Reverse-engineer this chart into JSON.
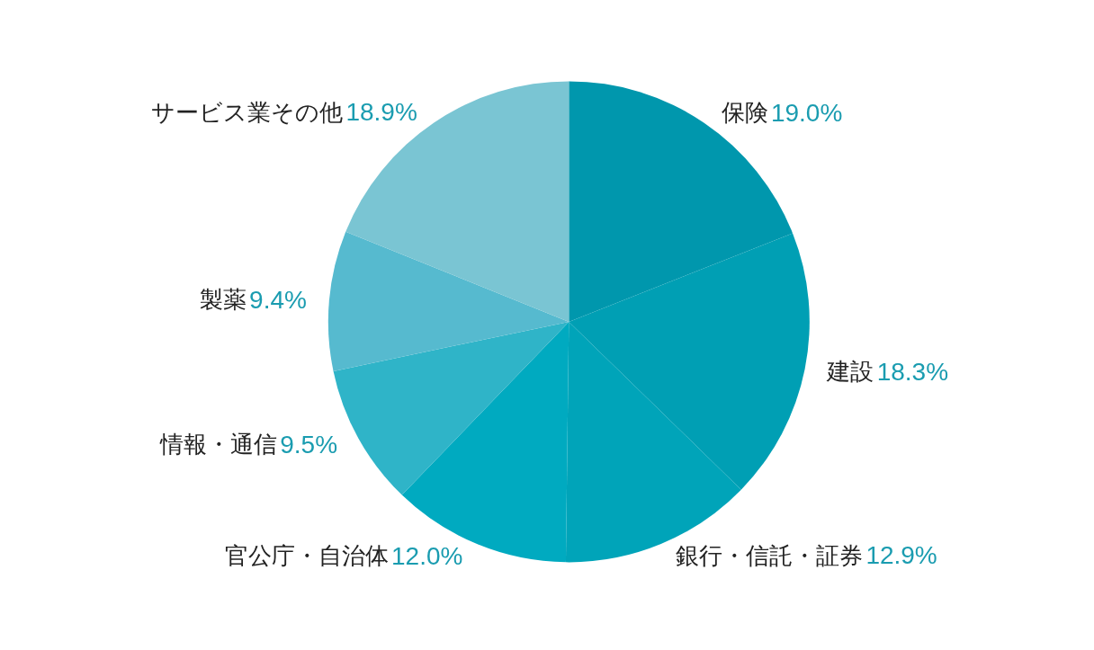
{
  "chart_data": {
    "type": "pie",
    "categories": [
      "保険",
      "建設",
      "銀行・信託・証券",
      "官公庁・自治体",
      "情報・通信",
      "製薬",
      "サービス業その他"
    ],
    "values": [
      19.0,
      18.3,
      12.9,
      12.0,
      9.5,
      9.4,
      18.9
    ],
    "value_labels": [
      "19.0%",
      "18.3%",
      "12.9%",
      "12.0%",
      "9.5%",
      "9.4%",
      "18.9%"
    ],
    "colors": [
      "#0097ad",
      "#009fb4",
      "#00a4b9",
      "#00aac0",
      "#2fb4c8",
      "#56bacf",
      "#7ac5d3"
    ],
    "legend": false
  }
}
